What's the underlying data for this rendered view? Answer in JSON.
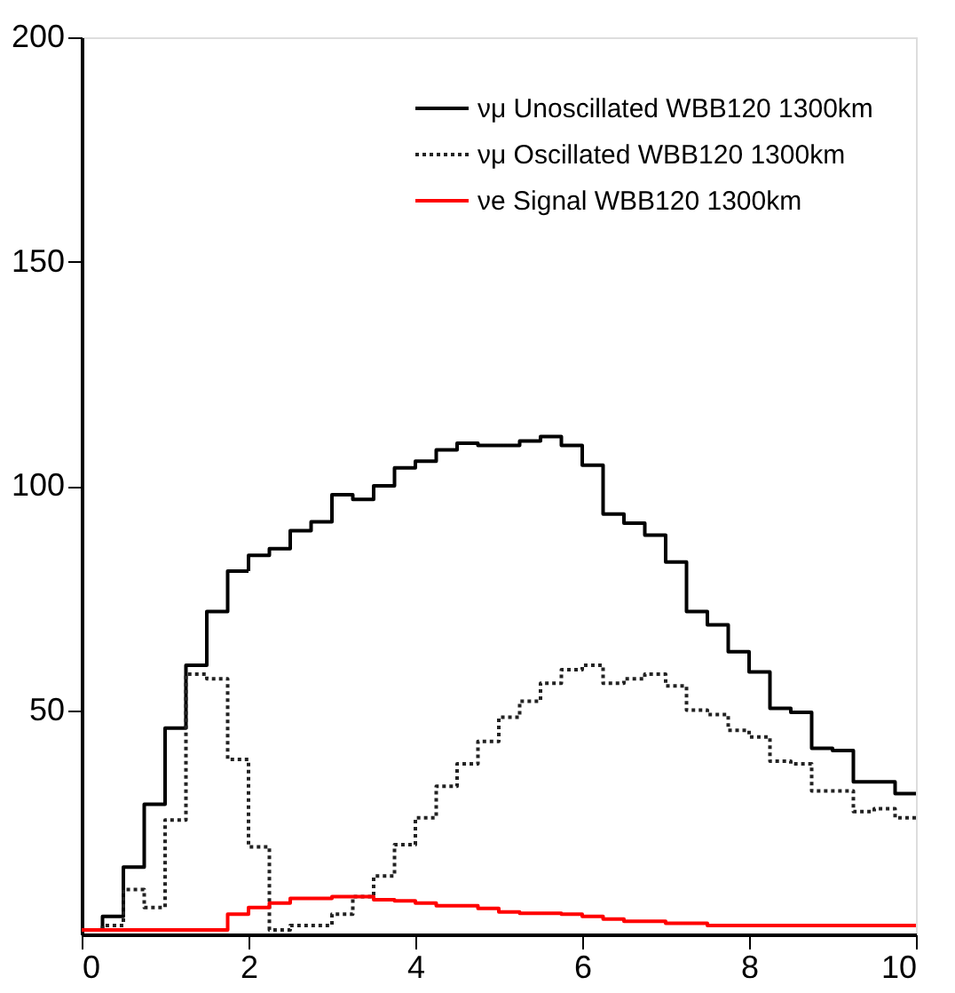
{
  "chart_data": {
    "type": "histogram",
    "bins": [
      0,
      0.25,
      0.5,
      0.75,
      1,
      1.25,
      1.5,
      1.75,
      2,
      2.25,
      2.5,
      2.75,
      3,
      3.25,
      3.5,
      3.75,
      4,
      4.25,
      4.5,
      4.75,
      5,
      5.25,
      5.5,
      5.75,
      6,
      6.25,
      6.5,
      6.75,
      7,
      7.25,
      7.5,
      7.75,
      8,
      8.25,
      8.5,
      8.75,
      9,
      9.25,
      9.5,
      9.75,
      10
    ],
    "series": [
      {
        "name": "νμ Unoscillated WBB120 1300km",
        "color": "#000000",
        "line_style": "solid",
        "values": [
          1,
          4,
          15,
          29,
          46,
          60,
          72,
          81,
          84.5,
          86,
          90,
          92,
          98,
          97,
          100,
          104,
          105.5,
          108,
          109.5,
          109,
          109,
          110,
          111,
          109,
          104.6,
          93.7,
          91.7,
          89,
          83,
          72,
          69,
          63,
          58.5,
          50.4,
          49.5,
          41.5,
          41,
          34,
          34,
          31.4
        ]
      },
      {
        "name": "νμ Oscillated WBB120 1300km",
        "color": "#222222",
        "line_style": "dotted",
        "values": [
          1,
          2,
          10,
          6,
          25.5,
          58,
          57,
          39,
          19.5,
          1,
          2,
          2,
          4.5,
          8.4,
          13,
          20,
          26,
          33,
          38,
          43,
          48.4,
          52,
          56,
          59,
          60,
          56,
          57,
          58,
          55.4,
          50,
          49,
          45.5,
          44,
          38.6,
          38,
          32,
          32,
          27.4,
          28,
          26
        ]
      },
      {
        "name": "νe Signal WBB120 1300km",
        "color": "#ff0000",
        "line_style": "solid",
        "values": [
          1,
          1,
          1,
          1,
          1,
          1,
          1,
          4.5,
          6,
          7,
          8,
          8,
          8.4,
          8.4,
          7.7,
          7.5,
          7,
          6.4,
          6.4,
          5.8,
          5,
          4.7,
          4.7,
          4.5,
          4,
          3.4,
          2.9,
          2.9,
          2.5,
          2.5,
          2,
          2,
          2,
          2,
          2,
          2,
          2,
          2,
          2,
          2
        ]
      }
    ],
    "xlim": [
      0,
      10
    ],
    "xticks": [
      0,
      2,
      4,
      6,
      8,
      10
    ],
    "ylim": [
      0,
      200
    ],
    "yticks": [
      50,
      100,
      150,
      200
    ],
    "grid": false,
    "legend": "top right"
  }
}
